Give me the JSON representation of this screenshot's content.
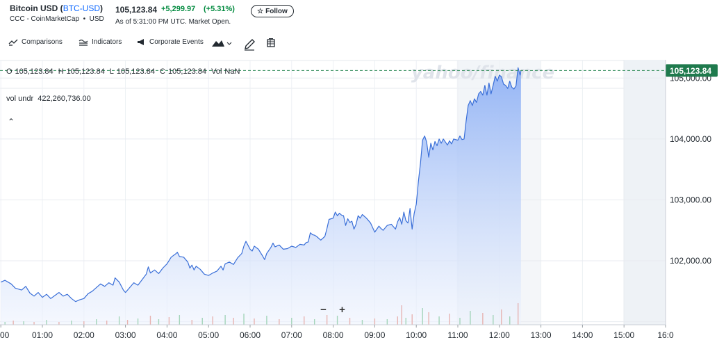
{
  "header": {
    "name": "Bitcoin USD",
    "ticker": "BTC-USD",
    "source": "CCC - CoinMarketCap",
    "currency": "USD",
    "price": "105,123.84",
    "change": "+5,299.97",
    "change_pct": "(+5.31%)",
    "as_of": "As of 5:31:00 PM UTC. Market Open.",
    "follow_label": "Follow"
  },
  "toolbar": {
    "comparisons": "Comparisons",
    "indicators": "Indicators",
    "corporate_events": "Corporate Events"
  },
  "ohlc": {
    "o_label": "O",
    "o": "105,123.84",
    "h_label": "H",
    "h": "105,123.84",
    "l_label": "L",
    "l": "105,123.84",
    "c_label": "C",
    "c": "105,123.84",
    "vol_label": "Vol",
    "vol": "NaN"
  },
  "vol_undr": {
    "label": "vol undr",
    "value": "422,260,736.00"
  },
  "watermark": "yahoo/finance",
  "last_price_label": "105,123.84",
  "colors": {
    "line": "#3a6fd8",
    "area_top": "#8fb1f5",
    "area_bottom": "#eef3fd",
    "last_price_badge": "#1f7a4d",
    "vol_up": "#34a853",
    "vol_down": "#e0533c"
  },
  "chart_data": {
    "type": "area",
    "title": "",
    "xlabel": "",
    "ylabel": "",
    "x_tick_labels": [
      "00",
      "01:00",
      "02:00",
      "03:00",
      "04:00",
      "05:00",
      "06:00",
      "07:00",
      "08:00",
      "09:00",
      "10:00",
      "11:00",
      "12:00",
      "13:00",
      "14:00",
      "15:00",
      "16:0"
    ],
    "x_tick_hours": [
      0,
      1,
      2,
      3,
      4,
      5,
      6,
      7,
      8,
      9,
      10,
      11,
      12,
      13,
      14,
      15,
      16
    ],
    "y_tick_values": [
      102000,
      103000,
      104000,
      105000
    ],
    "y_tick_labels": [
      "102,000.00",
      "103,000.00",
      "104,000.00",
      "105,000.00"
    ],
    "xlim": [
      -0.02,
      16.0
    ],
    "ylim": [
      100950,
      105300
    ],
    "grid": true,
    "series": [
      {
        "values": [
          [
            0.0,
            101650
          ],
          [
            0.1,
            101680
          ],
          [
            0.25,
            101620
          ],
          [
            0.35,
            101550
          ],
          [
            0.5,
            101520
          ],
          [
            0.6,
            101580
          ],
          [
            0.7,
            101470
          ],
          [
            0.8,
            101420
          ],
          [
            0.9,
            101480
          ],
          [
            1.0,
            101400
          ],
          [
            1.1,
            101450
          ],
          [
            1.2,
            101380
          ],
          [
            1.3,
            101430
          ],
          [
            1.4,
            101480
          ],
          [
            1.5,
            101420
          ],
          [
            1.6,
            101450
          ],
          [
            1.7,
            101380
          ],
          [
            1.8,
            101330
          ],
          [
            1.9,
            101360
          ],
          [
            2.0,
            101380
          ],
          [
            2.1,
            101460
          ],
          [
            2.2,
            101500
          ],
          [
            2.3,
            101560
          ],
          [
            2.4,
            101620
          ],
          [
            2.5,
            101580
          ],
          [
            2.6,
            101640
          ],
          [
            2.7,
            101600
          ],
          [
            2.75,
            101720
          ],
          [
            2.85,
            101650
          ],
          [
            2.95,
            101520
          ],
          [
            3.0,
            101480
          ],
          [
            3.1,
            101560
          ],
          [
            3.2,
            101640
          ],
          [
            3.3,
            101600
          ],
          [
            3.4,
            101690
          ],
          [
            3.5,
            101780
          ],
          [
            3.55,
            101900
          ],
          [
            3.6,
            101800
          ],
          [
            3.7,
            101850
          ],
          [
            3.8,
            101790
          ],
          [
            3.9,
            101880
          ],
          [
            4.0,
            101950
          ],
          [
            4.1,
            102060
          ],
          [
            4.2,
            102110
          ],
          [
            4.25,
            102140
          ],
          [
            4.3,
            102070
          ],
          [
            4.4,
            102060
          ],
          [
            4.5,
            101980
          ],
          [
            4.55,
            101880
          ],
          [
            4.6,
            101930
          ],
          [
            4.65,
            101850
          ],
          [
            4.7,
            101910
          ],
          [
            4.8,
            101860
          ],
          [
            4.9,
            101780
          ],
          [
            5.0,
            101760
          ],
          [
            5.1,
            101800
          ],
          [
            5.2,
            101830
          ],
          [
            5.3,
            101910
          ],
          [
            5.35,
            101850
          ],
          [
            5.4,
            101950
          ],
          [
            5.5,
            101980
          ],
          [
            5.6,
            101940
          ],
          [
            5.7,
            102050
          ],
          [
            5.8,
            102120
          ],
          [
            5.85,
            102240
          ],
          [
            5.9,
            102320
          ],
          [
            6.0,
            102190
          ],
          [
            6.05,
            102160
          ],
          [
            6.1,
            102240
          ],
          [
            6.2,
            102190
          ],
          [
            6.3,
            102080
          ],
          [
            6.35,
            102020
          ],
          [
            6.4,
            102120
          ],
          [
            6.5,
            102220
          ],
          [
            6.55,
            102290
          ],
          [
            6.6,
            102230
          ],
          [
            6.7,
            102260
          ],
          [
            6.8,
            102190
          ],
          [
            6.9,
            102200
          ],
          [
            7.0,
            102240
          ],
          [
            7.1,
            102220
          ],
          [
            7.2,
            102270
          ],
          [
            7.3,
            102260
          ],
          [
            7.35,
            102300
          ],
          [
            7.4,
            102310
          ],
          [
            7.45,
            102460
          ],
          [
            7.5,
            102430
          ],
          [
            7.55,
            102420
          ],
          [
            7.6,
            102400
          ],
          [
            7.7,
            102340
          ],
          [
            7.8,
            102400
          ],
          [
            7.85,
            102530
          ],
          [
            7.9,
            102680
          ],
          [
            8.0,
            102700
          ],
          [
            8.05,
            102800
          ],
          [
            8.1,
            102740
          ],
          [
            8.15,
            102780
          ],
          [
            8.2,
            102750
          ],
          [
            8.25,
            102740
          ],
          [
            8.3,
            102580
          ],
          [
            8.35,
            102690
          ],
          [
            8.4,
            102630
          ],
          [
            8.45,
            102650
          ],
          [
            8.5,
            102520
          ],
          [
            8.55,
            102600
          ],
          [
            8.6,
            102740
          ],
          [
            8.65,
            102700
          ],
          [
            8.7,
            102760
          ],
          [
            8.8,
            102700
          ],
          [
            8.9,
            102620
          ],
          [
            9.0,
            102470
          ],
          [
            9.1,
            102570
          ],
          [
            9.15,
            102530
          ],
          [
            9.2,
            102500
          ],
          [
            9.3,
            102580
          ],
          [
            9.4,
            102600
          ],
          [
            9.5,
            102520
          ],
          [
            9.55,
            102640
          ],
          [
            9.6,
            102710
          ],
          [
            9.65,
            102600
          ],
          [
            9.7,
            102800
          ],
          [
            9.75,
            102660
          ],
          [
            9.8,
            102620
          ],
          [
            9.85,
            102860
          ],
          [
            9.9,
            102520
          ],
          [
            9.95,
            102780
          ],
          [
            10.0,
            102930
          ],
          [
            10.05,
            103300
          ],
          [
            10.1,
            103600
          ],
          [
            10.15,
            103980
          ],
          [
            10.2,
            104050
          ],
          [
            10.25,
            103950
          ],
          [
            10.3,
            103700
          ],
          [
            10.35,
            103930
          ],
          [
            10.4,
            103820
          ],
          [
            10.45,
            103960
          ],
          [
            10.5,
            103890
          ],
          [
            10.55,
            104000
          ],
          [
            10.6,
            103930
          ],
          [
            10.65,
            104000
          ],
          [
            10.7,
            103950
          ],
          [
            10.75,
            103900
          ],
          [
            10.8,
            103970
          ],
          [
            10.85,
            103920
          ],
          [
            10.9,
            104000
          ],
          [
            11.0,
            103980
          ],
          [
            11.05,
            104050
          ],
          [
            11.1,
            103990
          ],
          [
            11.15,
            104000
          ],
          [
            11.2,
            104300
          ],
          [
            11.25,
            104550
          ],
          [
            11.3,
            104630
          ],
          [
            11.35,
            104550
          ],
          [
            11.4,
            104660
          ],
          [
            11.45,
            104600
          ],
          [
            11.5,
            104740
          ],
          [
            11.55,
            104780
          ],
          [
            11.6,
            104720
          ],
          [
            11.65,
            104880
          ],
          [
            11.7,
            104720
          ],
          [
            11.75,
            104920
          ],
          [
            11.8,
            104740
          ],
          [
            11.85,
            104880
          ],
          [
            11.9,
            105030
          ],
          [
            11.95,
            104950
          ],
          [
            12.0,
            105050
          ],
          [
            12.05,
            105020
          ],
          [
            12.1,
            104900
          ],
          [
            12.15,
            104880
          ],
          [
            12.2,
            104830
          ],
          [
            12.25,
            104950
          ],
          [
            12.3,
            104850
          ],
          [
            12.35,
            104820
          ],
          [
            12.4,
            104870
          ],
          [
            12.45,
            105170
          ],
          [
            12.5,
            105050
          ],
          [
            12.52,
            105123.84
          ]
        ]
      }
    ],
    "last_price": 105123.84,
    "volume": {
      "bars": [
        [
          0.1,
          0.04,
          "up"
        ],
        [
          0.3,
          0.06,
          "down"
        ],
        [
          0.55,
          0.05,
          "up"
        ],
        [
          0.8,
          0.04,
          "down"
        ],
        [
          1.1,
          0.07,
          "up"
        ],
        [
          1.4,
          0.04,
          "down"
        ],
        [
          1.7,
          0.06,
          "up"
        ],
        [
          2.0,
          0.05,
          "down"
        ],
        [
          2.3,
          0.08,
          "up"
        ],
        [
          2.55,
          0.06,
          "down"
        ],
        [
          2.85,
          0.12,
          "up"
        ],
        [
          3.05,
          0.07,
          "down"
        ],
        [
          3.3,
          0.09,
          "up"
        ],
        [
          3.6,
          0.13,
          "down"
        ],
        [
          3.8,
          0.08,
          "up"
        ],
        [
          4.05,
          0.11,
          "down"
        ],
        [
          4.3,
          0.14,
          "up"
        ],
        [
          4.6,
          0.07,
          "down"
        ],
        [
          4.85,
          0.1,
          "up"
        ],
        [
          5.1,
          0.12,
          "down"
        ],
        [
          5.4,
          0.14,
          "up"
        ],
        [
          5.6,
          0.1,
          "down"
        ],
        [
          5.85,
          0.16,
          "up"
        ],
        [
          6.1,
          0.09,
          "down"
        ],
        [
          6.4,
          0.13,
          "up"
        ],
        [
          6.7,
          0.08,
          "down"
        ],
        [
          7.0,
          0.1,
          "up"
        ],
        [
          7.3,
          0.12,
          "down"
        ],
        [
          7.55,
          0.08,
          "up"
        ],
        [
          7.85,
          0.14,
          "down"
        ],
        [
          8.1,
          0.13,
          "up"
        ],
        [
          8.4,
          0.1,
          "down"
        ],
        [
          8.7,
          0.07,
          "up"
        ],
        [
          9.0,
          0.09,
          "down"
        ],
        [
          9.3,
          0.08,
          "up"
        ],
        [
          9.55,
          0.12,
          "down"
        ],
        [
          9.65,
          0.28,
          "down"
        ],
        [
          9.75,
          0.1,
          "up"
        ],
        [
          9.9,
          0.15,
          "down"
        ],
        [
          10.15,
          0.24,
          "up"
        ],
        [
          10.3,
          0.18,
          "down"
        ],
        [
          10.55,
          0.12,
          "up"
        ],
        [
          10.8,
          0.16,
          "down"
        ],
        [
          11.05,
          0.1,
          "up"
        ],
        [
          11.3,
          0.2,
          "up"
        ],
        [
          11.6,
          0.17,
          "down"
        ],
        [
          11.85,
          0.14,
          "up"
        ],
        [
          12.05,
          0.22,
          "down"
        ],
        [
          12.25,
          0.12,
          "up"
        ],
        [
          12.45,
          0.31,
          "down"
        ]
      ]
    }
  }
}
